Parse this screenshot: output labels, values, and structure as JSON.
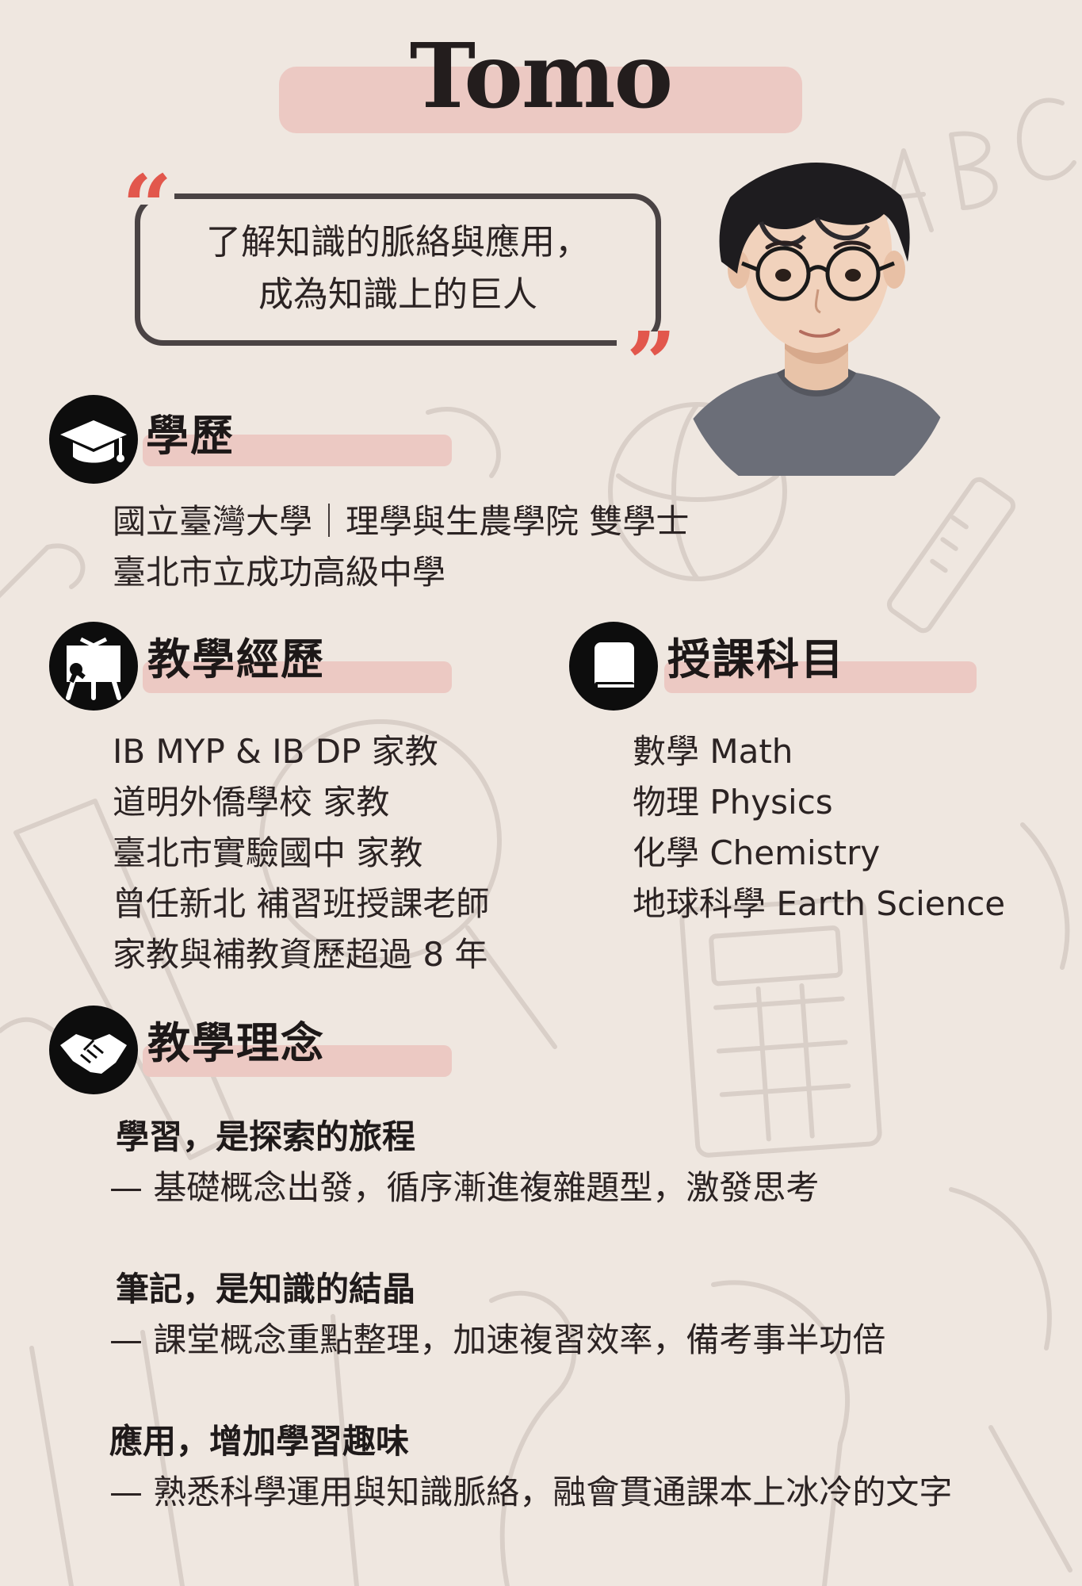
{
  "name": "Tomo",
  "quote": {
    "line1": "了解知識的脈絡與應用，",
    "line2": "成為知識上的巨人",
    "open_mark": "“",
    "close_mark": "”"
  },
  "education": {
    "title": "學歷",
    "icon": "graduation-cap-icon",
    "items": [
      "國立臺灣大學｜理學與生農學院 雙學士",
      "臺北市立成功高級中學"
    ]
  },
  "experience": {
    "title": "教學經歷",
    "icon": "teaching-board-icon",
    "items": [
      "IB MYP & IB DP 家教",
      "道明外僑學校 家教",
      "臺北市實驗國中 家教",
      "曾任新北 補習班授課老師",
      "家教與補教資歷超過 8 年"
    ]
  },
  "subjects": {
    "title": "授課科目",
    "icon": "book-icon",
    "items": [
      "數學 Math",
      "物理 Physics",
      "化學 Chemistry",
      "地球科學 Earth Science"
    ]
  },
  "philosophy": {
    "title": "教學理念",
    "icon": "handshake-icon",
    "items": [
      {
        "head": "學習，是探索的旅程",
        "body": "— 基礎概念出發，循序漸進複雜題型，激發思考"
      },
      {
        "head": "筆記，是知識的結晶",
        "body": "— 課堂概念重點整理，加速複習效率，備考事半功倍"
      },
      {
        "head": "應用，增加學習趣味",
        "body": "— 熟悉科學運用與知識脈絡，融會貫通課本上冰冷的文字"
      }
    ]
  },
  "colors": {
    "background": "#efe7e0",
    "highlight_bar": "#ecc9c3",
    "quote_mark": "#e2574c",
    "icon_circle": "#0d0d0d"
  }
}
